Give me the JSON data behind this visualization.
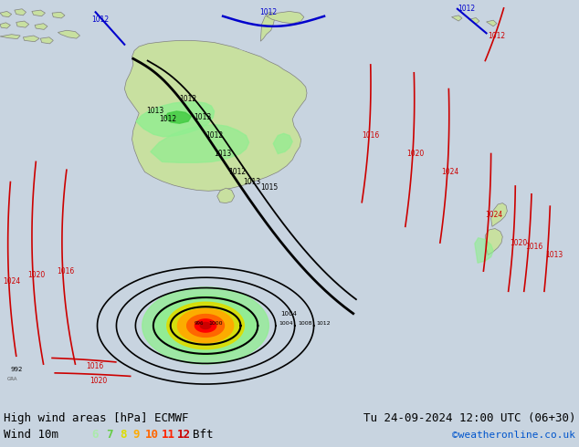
{
  "title_left": "High wind areas [hPa] ECMWF",
  "title_right": "Tu 24-09-2024 12:00 UTC (06+30)",
  "subtitle_label": "Wind 10m",
  "bft_numbers": [
    "6",
    "7",
    "8",
    "9",
    "10",
    "11",
    "12"
  ],
  "bft_colors": [
    "#abeaab",
    "#66cc44",
    "#dddd00",
    "#ffaa00",
    "#ff6600",
    "#ff2200",
    "#cc0000"
  ],
  "bft_suffix": "Bft",
  "website": "©weatheronline.co.uk",
  "website_color": "#0055cc",
  "bg_color": "#c8d4e0",
  "land_color": "#c8e0a0",
  "land_edge": "#808080",
  "ocean_color": "#c8d4e0",
  "legend_bg": "#f0f0f0",
  "title_fontsize": 9,
  "label_fontsize": 9,
  "figsize": [
    6.34,
    4.9
  ],
  "dpi": 100,
  "isobar_red": "#cc0000",
  "isobar_black": "#000000",
  "isobar_blue": "#0000cc",
  "wind_green_light": "#90ee90",
  "wind_green_med": "#44cc44",
  "wind_yellow": "#dddd00",
  "wind_orange": "#ffaa00",
  "wind_red_light": "#ff6600",
  "wind_red": "#ff0000"
}
